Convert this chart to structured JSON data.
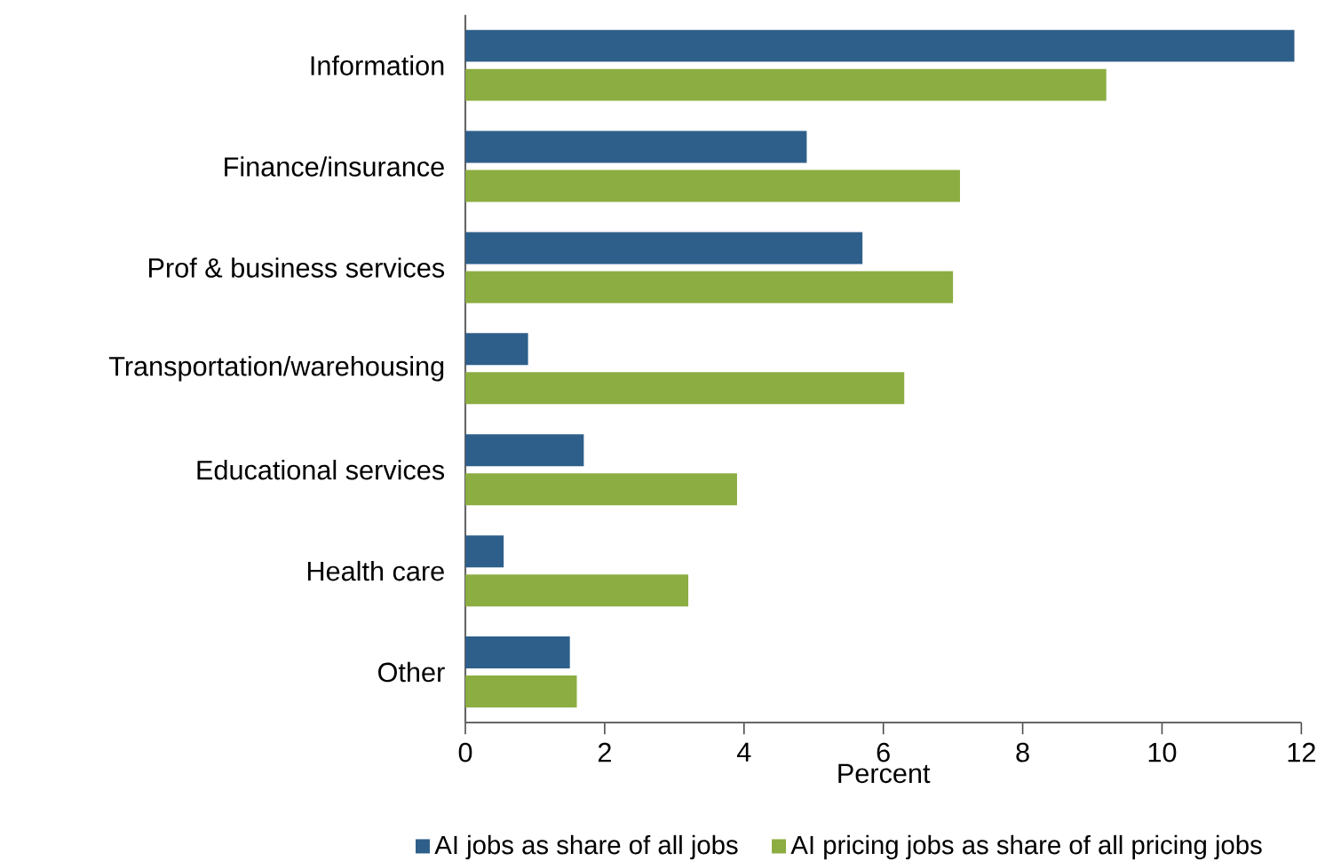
{
  "chart_data": {
    "type": "bar",
    "orientation": "horizontal",
    "categories": [
      "Information",
      "Finance/insurance",
      "Prof & business services",
      "Transportation/warehousing",
      "Educational services",
      "Health care",
      "Other"
    ],
    "series": [
      {
        "name": "AI jobs as share of all jobs",
        "color": "#2e5f8a",
        "values": [
          11.9,
          4.9,
          5.7,
          0.9,
          1.7,
          0.55,
          1.5
        ]
      },
      {
        "name": "AI pricing jobs as share of all pricing jobs",
        "color": "#8bad41",
        "values": [
          9.2,
          7.1,
          7.0,
          6.3,
          3.9,
          3.2,
          1.6
        ]
      }
    ],
    "xlim": [
      0,
      12
    ],
    "xticks": [
      0,
      2,
      4,
      6,
      8,
      10,
      12
    ],
    "xlabel": "Percent",
    "legend": "bottom"
  }
}
